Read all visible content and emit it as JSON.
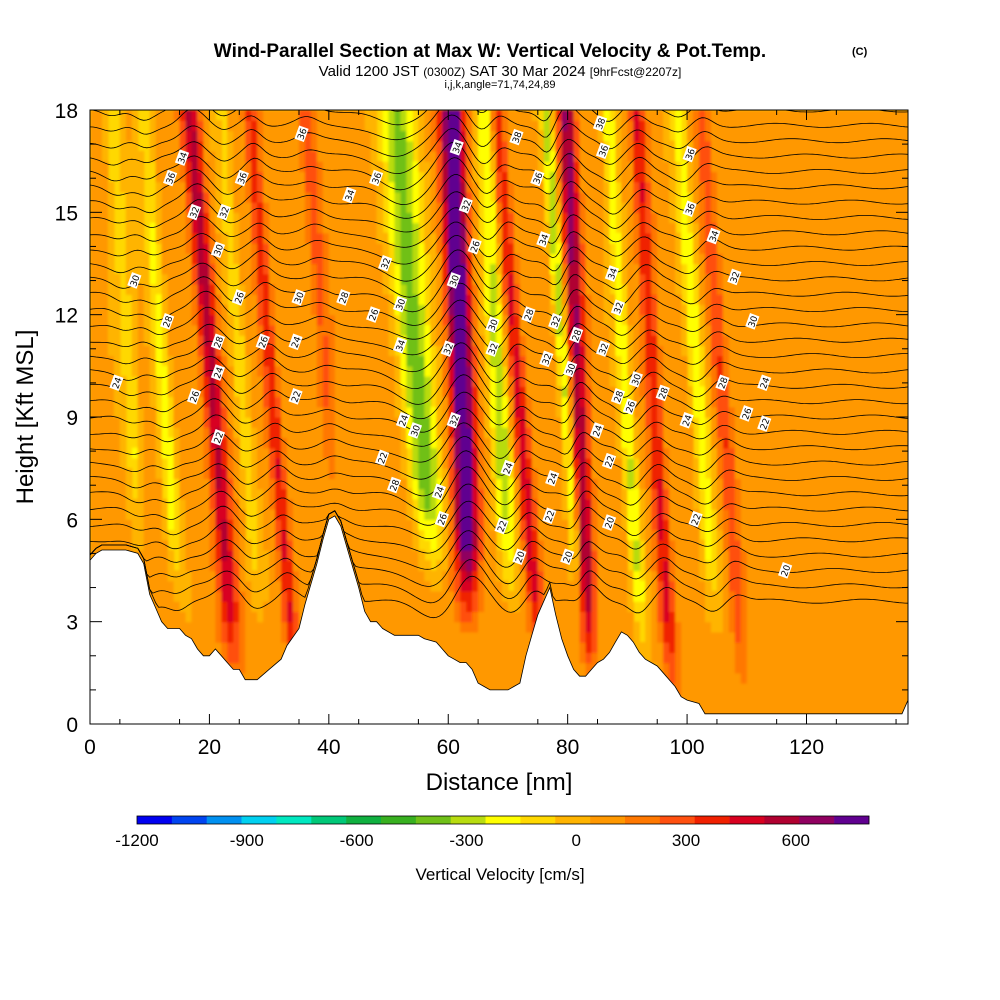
{
  "chart_data": {
    "type": "heatmap",
    "title": "Wind-Parallel Section at Max W: Vertical Velocity & Pot.Temp.",
    "title_mark": "(C)",
    "subtitle_parts": [
      "Valid 1200 JST",
      "(0300Z)",
      "SAT 30 Mar 2024",
      "[9hrFcst@2207z]"
    ],
    "subtitle2": "i,j,k,angle=71,74,24,89",
    "xlabel": "Distance [nm]",
    "ylabel": "Height [Kft MSL]",
    "xlim": [
      0,
      137
    ],
    "ylim": [
      0,
      18
    ],
    "x_ticks": [
      0,
      20,
      40,
      60,
      80,
      100,
      120
    ],
    "y_ticks": [
      0,
      3,
      6,
      9,
      12,
      15,
      18
    ],
    "colorbar": {
      "label": "Vertical Velocity [cm/s]",
      "min": -1200,
      "max": 800,
      "tick_values": [
        -1200,
        -900,
        -600,
        -300,
        0,
        300,
        600
      ],
      "tick_labels": [
        "-1200",
        "-900",
        "-600",
        "-300",
        "0",
        "300",
        "600"
      ],
      "colors": [
        "#0000f0",
        "#0044f0",
        "#0090f0",
        "#00d0f0",
        "#00e8c0",
        "#00c878",
        "#10b040",
        "#38b020",
        "#70c018",
        "#b8dc10",
        "#ffff00",
        "#ffd800",
        "#ffb400",
        "#ff9800",
        "#ff7800",
        "#ff5010",
        "#f02000",
        "#d80020",
        "#b00030",
        "#900060",
        "#600090"
      ]
    },
    "terrain": [
      [
        0,
        4.8
      ],
      [
        1,
        5.0
      ],
      [
        2,
        5.1
      ],
      [
        4,
        5.1
      ],
      [
        6,
        5.1
      ],
      [
        8,
        5.0
      ],
      [
        9,
        4.7
      ],
      [
        10,
        3.8
      ],
      [
        11,
        3.4
      ],
      [
        12,
        3.0
      ],
      [
        13,
        2.8
      ],
      [
        15,
        2.8
      ],
      [
        16,
        2.6
      ],
      [
        17,
        2.5
      ],
      [
        18,
        2.2
      ],
      [
        19,
        2.0
      ],
      [
        20,
        2.0
      ],
      [
        21,
        2.2
      ],
      [
        22,
        2.0
      ],
      [
        23,
        1.8
      ],
      [
        24,
        1.6
      ],
      [
        25,
        1.6
      ],
      [
        26,
        1.3
      ],
      [
        28,
        1.3
      ],
      [
        30,
        1.6
      ],
      [
        32,
        1.9
      ],
      [
        33,
        2.3
      ],
      [
        35,
        2.8
      ],
      [
        36,
        3.5
      ],
      [
        37,
        4.1
      ],
      [
        38,
        4.7
      ],
      [
        39,
        5.4
      ],
      [
        40,
        6.0
      ],
      [
        41,
        6.1
      ],
      [
        42,
        5.8
      ],
      [
        43,
        5.2
      ],
      [
        44,
        4.6
      ],
      [
        45,
        4.0
      ],
      [
        46,
        3.3
      ],
      [
        47,
        3.0
      ],
      [
        48,
        3.0
      ],
      [
        49,
        2.8
      ],
      [
        51,
        2.6
      ],
      [
        53,
        2.6
      ],
      [
        55,
        2.6
      ],
      [
        56,
        2.5
      ],
      [
        58,
        2.4
      ],
      [
        59,
        2.2
      ],
      [
        60,
        2.0
      ],
      [
        61,
        1.9
      ],
      [
        62,
        1.8
      ],
      [
        63,
        1.8
      ],
      [
        64,
        1.6
      ],
      [
        65,
        1.2
      ],
      [
        66,
        1.1
      ],
      [
        67,
        1.0
      ],
      [
        69,
        1.0
      ],
      [
        70,
        1.0
      ],
      [
        71,
        1.1
      ],
      [
        72,
        1.2
      ],
      [
        73,
        2.0
      ],
      [
        74,
        2.6
      ],
      [
        75,
        3.2
      ],
      [
        76,
        3.6
      ],
      [
        77,
        4.0
      ],
      [
        78,
        3.2
      ],
      [
        79,
        2.5
      ],
      [
        80,
        2.0
      ],
      [
        81,
        1.6
      ],
      [
        82,
        1.4
      ],
      [
        83,
        1.4
      ],
      [
        84,
        1.6
      ],
      [
        85,
        1.8
      ],
      [
        86,
        1.9
      ],
      [
        87,
        2.1
      ],
      [
        88,
        2.4
      ],
      [
        89,
        2.7
      ],
      [
        90,
        2.6
      ],
      [
        91,
        2.4
      ],
      [
        92,
        2.1
      ],
      [
        93,
        1.9
      ],
      [
        94,
        1.8
      ],
      [
        95,
        1.7
      ],
      [
        96,
        1.5
      ],
      [
        97,
        1.3
      ],
      [
        98,
        1.1
      ],
      [
        99,
        0.8
      ],
      [
        100,
        0.7
      ],
      [
        102,
        0.6
      ],
      [
        103,
        0.3
      ],
      [
        110,
        0.3
      ],
      [
        120,
        0.3
      ],
      [
        130,
        0.3
      ],
      [
        136,
        0.3
      ],
      [
        137,
        0.7
      ]
    ],
    "contour_labels": [
      {
        "x": 13.5,
        "y": 16.0,
        "text": "36"
      },
      {
        "x": 15.5,
        "y": 16.6,
        "text": "34"
      },
      {
        "x": 17.5,
        "y": 15.0,
        "text": "32"
      },
      {
        "x": 22.5,
        "y": 15.0,
        "text": "32"
      },
      {
        "x": 25.5,
        "y": 16.0,
        "text": "36"
      },
      {
        "x": 21.5,
        "y": 13.9,
        "text": "30"
      },
      {
        "x": 7.5,
        "y": 13.0,
        "text": "30"
      },
      {
        "x": 13.0,
        "y": 11.8,
        "text": "28"
      },
      {
        "x": 25.0,
        "y": 12.5,
        "text": "26"
      },
      {
        "x": 35.0,
        "y": 12.5,
        "text": "30"
      },
      {
        "x": 42.5,
        "y": 12.5,
        "text": "28"
      },
      {
        "x": 43.5,
        "y": 15.5,
        "text": "34"
      },
      {
        "x": 35.5,
        "y": 17.3,
        "text": "36"
      },
      {
        "x": 21.5,
        "y": 11.2,
        "text": "28"
      },
      {
        "x": 29.0,
        "y": 11.2,
        "text": "26"
      },
      {
        "x": 34.5,
        "y": 11.2,
        "text": "24"
      },
      {
        "x": 4.5,
        "y": 10.0,
        "text": "24"
      },
      {
        "x": 21.5,
        "y": 10.3,
        "text": "24"
      },
      {
        "x": 17.5,
        "y": 9.6,
        "text": "26"
      },
      {
        "x": 34.5,
        "y": 9.6,
        "text": "22"
      },
      {
        "x": 21.5,
        "y": 8.4,
        "text": "22"
      },
      {
        "x": 47.5,
        "y": 12.0,
        "text": "26"
      },
      {
        "x": 48.0,
        "y": 16.0,
        "text": "36"
      },
      {
        "x": 49.5,
        "y": 13.5,
        "text": "32"
      },
      {
        "x": 52.0,
        "y": 12.3,
        "text": "30"
      },
      {
        "x": 52.0,
        "y": 11.1,
        "text": "34"
      },
      {
        "x": 52.5,
        "y": 8.9,
        "text": "24"
      },
      {
        "x": 54.5,
        "y": 8.6,
        "text": "30"
      },
      {
        "x": 49.0,
        "y": 7.8,
        "text": "22"
      },
      {
        "x": 51.0,
        "y": 7.0,
        "text": "28"
      },
      {
        "x": 58.5,
        "y": 6.8,
        "text": "24"
      },
      {
        "x": 59.0,
        "y": 6.0,
        "text": "26"
      },
      {
        "x": 61.5,
        "y": 16.9,
        "text": "34"
      },
      {
        "x": 61.0,
        "y": 13.0,
        "text": "30"
      },
      {
        "x": 60.0,
        "y": 11.0,
        "text": "32"
      },
      {
        "x": 61.0,
        "y": 8.9,
        "text": "32"
      },
      {
        "x": 63.0,
        "y": 15.2,
        "text": "32"
      },
      {
        "x": 64.5,
        "y": 14.0,
        "text": "26"
      },
      {
        "x": 67.5,
        "y": 11.7,
        "text": "30"
      },
      {
        "x": 67.5,
        "y": 11.0,
        "text": "32"
      },
      {
        "x": 71.5,
        "y": 17.2,
        "text": "38"
      },
      {
        "x": 73.5,
        "y": 12.0,
        "text": "28"
      },
      {
        "x": 70.0,
        "y": 7.5,
        "text": "24"
      },
      {
        "x": 69.0,
        "y": 5.8,
        "text": "22"
      },
      {
        "x": 72.0,
        "y": 4.9,
        "text": "20"
      },
      {
        "x": 75.0,
        "y": 16.0,
        "text": "36"
      },
      {
        "x": 76.0,
        "y": 14.2,
        "text": "34"
      },
      {
        "x": 78.0,
        "y": 11.8,
        "text": "32"
      },
      {
        "x": 76.5,
        "y": 10.7,
        "text": "32"
      },
      {
        "x": 77.5,
        "y": 7.2,
        "text": "24"
      },
      {
        "x": 77.0,
        "y": 6.1,
        "text": "22"
      },
      {
        "x": 80.5,
        "y": 10.4,
        "text": "30"
      },
      {
        "x": 81.5,
        "y": 11.4,
        "text": "28"
      },
      {
        "x": 80.0,
        "y": 4.9,
        "text": "20"
      },
      {
        "x": 85.5,
        "y": 17.6,
        "text": "38"
      },
      {
        "x": 86.0,
        "y": 16.8,
        "text": "36"
      },
      {
        "x": 87.5,
        "y": 13.2,
        "text": "34"
      },
      {
        "x": 88.5,
        "y": 12.2,
        "text": "32"
      },
      {
        "x": 86.0,
        "y": 11.0,
        "text": "32"
      },
      {
        "x": 91.5,
        "y": 10.1,
        "text": "30"
      },
      {
        "x": 88.5,
        "y": 9.6,
        "text": "28"
      },
      {
        "x": 90.5,
        "y": 9.3,
        "text": "26"
      },
      {
        "x": 85.0,
        "y": 8.6,
        "text": "24"
      },
      {
        "x": 87.0,
        "y": 7.7,
        "text": "22"
      },
      {
        "x": 87.0,
        "y": 5.9,
        "text": "20"
      },
      {
        "x": 96.0,
        "y": 9.7,
        "text": "28"
      },
      {
        "x": 100.5,
        "y": 16.7,
        "text": "36"
      },
      {
        "x": 100.5,
        "y": 15.1,
        "text": "36"
      },
      {
        "x": 104.5,
        "y": 14.3,
        "text": "34"
      },
      {
        "x": 108.0,
        "y": 13.1,
        "text": "32"
      },
      {
        "x": 111.0,
        "y": 11.8,
        "text": "30"
      },
      {
        "x": 106.0,
        "y": 10.0,
        "text": "28"
      },
      {
        "x": 113.0,
        "y": 10.0,
        "text": "24"
      },
      {
        "x": 110.0,
        "y": 9.1,
        "text": "26"
      },
      {
        "x": 113.0,
        "y": 8.8,
        "text": "22"
      },
      {
        "x": 100.0,
        "y": 8.9,
        "text": "24"
      },
      {
        "x": 101.5,
        "y": 6.0,
        "text": "22"
      },
      {
        "x": 116.5,
        "y": 4.5,
        "text": "20"
      }
    ]
  }
}
